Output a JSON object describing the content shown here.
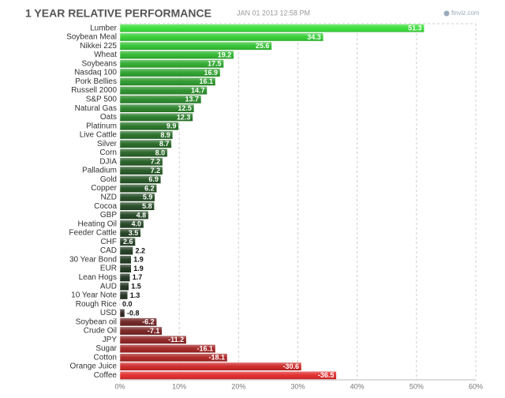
{
  "chart_data": {
    "type": "bar",
    "orientation": "horizontal",
    "title": "1 YEAR RELATIVE PERFORMANCE",
    "subtitle": "JAN 01 2013 12:58 PM",
    "source": "finviz.com",
    "categories": [
      "Lumber",
      "Soybean Meal",
      "Nikkei 225",
      "Wheat",
      "Soybeans",
      "Nasdaq 100",
      "Pork Bellies",
      "Russell 2000",
      "S&P 500",
      "Natural Gas",
      "Oats",
      "Platinum",
      "Live Cattle",
      "Silver",
      "Corn",
      "DJIA",
      "Palladium",
      "Gold",
      "Copper",
      "NZD",
      "Cocoa",
      "GBP",
      "Heating Oil",
      "Feeder Cattle",
      "CHF",
      "CAD",
      "30 Year Bond",
      "EUR",
      "Lean Hogs",
      "AUD",
      "10 Year Note",
      "Rough Rice",
      "USD",
      "Soybean oil",
      "Crude Oil",
      "JPY",
      "Sugar",
      "Cotton",
      "Orange Juice",
      "Coffee"
    ],
    "values": [
      51.3,
      34.3,
      25.6,
      19.2,
      17.5,
      16.9,
      16.1,
      14.7,
      13.7,
      12.5,
      12.3,
      9.9,
      8.9,
      8.7,
      8.0,
      7.2,
      7.2,
      6.9,
      6.2,
      5.9,
      5.8,
      4.8,
      4.0,
      3.5,
      2.6,
      2.2,
      1.9,
      1.9,
      1.7,
      1.5,
      1.3,
      0.0,
      -0.8,
      -6.2,
      -7.1,
      -11.2,
      -16.1,
      -18.1,
      -30.6,
      -36.5
    ],
    "value_labels": [
      "51.3",
      "34.3",
      "25.6",
      "19.2",
      "17.5",
      "16.9",
      "16.1",
      "14.7",
      "13.7",
      "12.5",
      "12.3",
      "9.9",
      "8.9",
      "8.7",
      "8.0",
      "7.2",
      "7.2",
      "6.9",
      "6.2",
      "5.9",
      "5.8",
      "4.8",
      "4.0",
      "3.5",
      "2.6",
      "2.2",
      "1.9",
      "1.9",
      "1.7",
      "1.5",
      "1.3",
      "0.0",
      "-0.8",
      "-6.2",
      "-7.1",
      "-11.2",
      "-16.1",
      "-18.1",
      "-30.6",
      "-36.5"
    ],
    "colors": [
      "#33dd33",
      "#2ecc2e",
      "#2bc02b",
      "#2ab42a",
      "#28a828",
      "#279e27",
      "#269626",
      "#258e25",
      "#248624",
      "#237e23",
      "#227722",
      "#217021",
      "#216a21",
      "#206420",
      "#205e20",
      "#1f591f",
      "#1f541f",
      "#1f501f",
      "#1e4c1e",
      "#1e481e",
      "#1e451e",
      "#1e421e",
      "#1d3f1d",
      "#1d3c1d",
      "#1d391d",
      "#1d361d",
      "#1c341c",
      "#1c321c",
      "#1c301c",
      "#1c2e1c",
      "#1c2c1c",
      "#1c2a1c",
      "#2e1c1c",
      "#6a1c1c",
      "#741c1c",
      "#8a1c1c",
      "#a01c1c",
      "#aa1e1e",
      "#cc2020",
      "#e02424"
    ],
    "xlim": [
      0,
      60
    ],
    "xticks": [
      {
        "value": 0,
        "label": "0%"
      },
      {
        "value": 10,
        "label": "10%"
      },
      {
        "value": 20,
        "label": "20%"
      },
      {
        "value": 30,
        "label": "30%"
      },
      {
        "value": 40,
        "label": "40%"
      },
      {
        "value": 50,
        "label": "50%"
      },
      {
        "value": 60,
        "label": "60%"
      }
    ],
    "grid": true
  }
}
